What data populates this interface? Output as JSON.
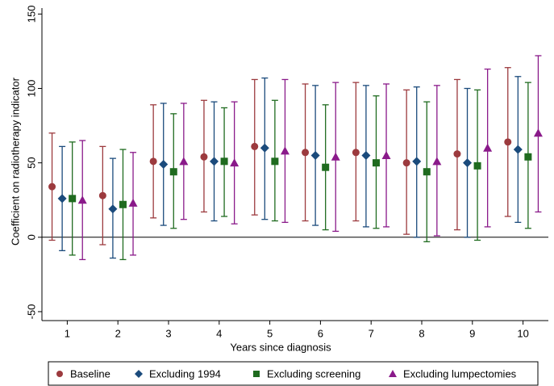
{
  "chart_data": {
    "type": "errorbar",
    "x_label": "Years since diagnosis",
    "y_label": "Coefficient on radiotherapy indicator",
    "x": [
      1,
      2,
      3,
      4,
      5,
      6,
      7,
      8,
      9,
      10
    ],
    "xlim": [
      0.5,
      10.5
    ],
    "xticks": [
      1,
      2,
      3,
      4,
      5,
      6,
      7,
      8,
      9,
      10
    ],
    "ylim": [
      -56,
      154
    ],
    "yticks": [
      -50,
      0,
      50,
      100,
      150
    ],
    "reference_line": 0,
    "series": [
      {
        "name": "Baseline",
        "color": "#9c3a3e",
        "marker": "circle",
        "values": [
          34,
          28,
          51,
          54,
          61,
          57,
          57,
          50,
          56,
          64
        ],
        "low": [
          -2,
          -5,
          13,
          17,
          15,
          11,
          11,
          2,
          5,
          14
        ],
        "high": [
          70,
          61,
          89,
          92,
          106,
          103,
          104,
          99,
          106,
          114
        ]
      },
      {
        "name": "Excluding 1994",
        "color": "#1b4b7c",
        "marker": "diamond",
        "values": [
          26,
          19,
          49,
          51,
          60,
          55,
          55,
          51,
          50,
          59
        ],
        "low": [
          -9,
          -14,
          8,
          11,
          12,
          8,
          7,
          0,
          0,
          10
        ],
        "high": [
          61,
          53,
          90,
          91,
          107,
          102,
          102,
          101,
          100,
          108
        ]
      },
      {
        "name": "Excluding screening",
        "color": "#1f6b1f",
        "marker": "square",
        "values": [
          26,
          22,
          44,
          51,
          51,
          47,
          50,
          44,
          48,
          54
        ],
        "low": [
          -12,
          -15,
          6,
          14,
          11,
          5,
          6,
          -3,
          -2,
          6
        ],
        "high": [
          64,
          59,
          83,
          87,
          92,
          89,
          95,
          91,
          99,
          104
        ]
      },
      {
        "name": "Excluding lumpectomies",
        "color": "#8a1a8a",
        "marker": "triangle",
        "values": [
          25,
          23,
          51,
          50,
          58,
          54,
          55,
          51,
          60,
          70
        ],
        "low": [
          -15,
          -12,
          12,
          9,
          10,
          4,
          7,
          1,
          7,
          17
        ],
        "high": [
          65,
          57,
          90,
          91,
          106,
          104,
          103,
          102,
          113,
          122
        ]
      }
    ]
  }
}
